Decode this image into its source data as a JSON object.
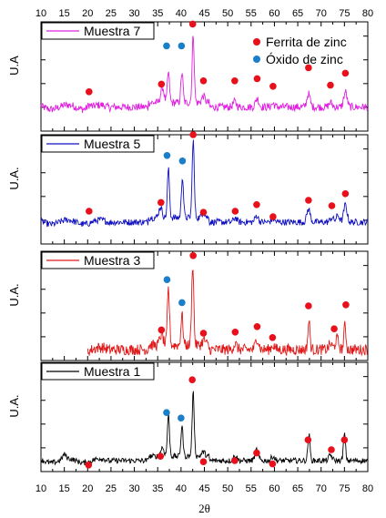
{
  "chart_data": {
    "type": "line",
    "xlabel": "2θ",
    "xlim": [
      10,
      80
    ],
    "x_ticks": [
      "10",
      "15",
      "20",
      "25",
      "30",
      "35",
      "40",
      "45",
      "50",
      "55",
      "60",
      "65",
      "70",
      "75",
      "80"
    ],
    "legend_markers": [
      {
        "label": "Ferrita de zinc",
        "color": "#e8101a"
      },
      {
        "label": "Óxido de zinc",
        "color": "#1a7ec8"
      }
    ],
    "panels": [
      {
        "series_name": "Muestra 7",
        "color": "#e020e0",
        "ylabel": "U.A",
        "x_start": 10,
        "baseline": 0.22,
        "noise": 0.035,
        "peaks": [
          {
            "x": 20.3,
            "h": 0.03
          },
          {
            "x": 36.0,
            "h": 0.14
          },
          {
            "x": 37.3,
            "h": 0.28
          },
          {
            "x": 40.2,
            "h": 0.28
          },
          {
            "x": 42.6,
            "h": 0.62
          },
          {
            "x": 44.8,
            "h": 0.06
          },
          {
            "x": 51.5,
            "h": 0.05
          },
          {
            "x": 56.3,
            "h": 0.08
          },
          {
            "x": 59.7,
            "h": 0.03
          },
          {
            "x": 67.3,
            "h": 0.12
          },
          {
            "x": 72.0,
            "h": 0.04
          },
          {
            "x": 75.2,
            "h": 0.14
          }
        ],
        "ferrita_x": [
          20.3,
          35.8,
          44.8,
          51.5,
          56.3,
          59.7,
          67.3,
          72.0,
          75.2
        ],
        "ferrita_y": [
          0.36,
          0.43,
          0.46,
          0.46,
          0.48,
          0.41,
          0.58,
          0.42,
          0.53
        ],
        "oxido_x": [
          36.9,
          40.1
        ],
        "oxido_y": [
          0.78,
          0.78
        ],
        "ferrita_top": {
          "x": 42.5,
          "y": 0.98
        }
      },
      {
        "series_name": "Muestra 5",
        "color": "#1010c0",
        "ylabel": "U.A.",
        "x_start": 10,
        "baseline": 0.2,
        "noise": 0.03,
        "peaks": [
          {
            "x": 35.6,
            "h": 0.1
          },
          {
            "x": 37.3,
            "h": 0.45
          },
          {
            "x": 40.3,
            "h": 0.38
          },
          {
            "x": 42.6,
            "h": 0.72
          },
          {
            "x": 44.8,
            "h": 0.05
          },
          {
            "x": 51.6,
            "h": 0.04
          },
          {
            "x": 56.2,
            "h": 0.06
          },
          {
            "x": 59.7,
            "h": 0.03
          },
          {
            "x": 67.3,
            "h": 0.12
          },
          {
            "x": 72.3,
            "h": 0.04
          },
          {
            "x": 73.6,
            "h": 0.06
          },
          {
            "x": 75.2,
            "h": 0.16
          }
        ],
        "ferrita_x": [
          20.3,
          35.7,
          44.8,
          51.6,
          56.2,
          59.7,
          67.3,
          72.3,
          75.2
        ],
        "ferrita_y": [
          0.3,
          0.38,
          0.29,
          0.3,
          0.36,
          0.25,
          0.4,
          0.35,
          0.46
        ],
        "oxido_x": [
          37.0,
          40.3
        ],
        "oxido_y": [
          0.81,
          0.76
        ],
        "ferrita_top": {
          "x": 42.6,
          "y": 1.0
        }
      },
      {
        "series_name": "Muestra 3",
        "color": "#e01818",
        "ylabel": "U.A.",
        "x_start": 20,
        "baseline": 0.1,
        "noise": 0.05,
        "peaks": [
          {
            "x": 35.8,
            "h": 0.1
          },
          {
            "x": 37.3,
            "h": 0.52
          },
          {
            "x": 40.2,
            "h": 0.28
          },
          {
            "x": 42.5,
            "h": 0.75
          },
          {
            "x": 44.9,
            "h": 0.05
          },
          {
            "x": 51.6,
            "h": 0.05
          },
          {
            "x": 56.3,
            "h": 0.1
          },
          {
            "x": 59.7,
            "h": 0.04
          },
          {
            "x": 67.4,
            "h": 0.26
          },
          {
            "x": 72.0,
            "h": 0.05
          },
          {
            "x": 73.4,
            "h": 0.1
          },
          {
            "x": 75.1,
            "h": 0.22
          }
        ],
        "ferrita_x": [
          35.8,
          44.8,
          51.6,
          56.3,
          59.6,
          67.3,
          72.8,
          75.3
        ],
        "ferrita_y": [
          0.28,
          0.25,
          0.26,
          0.31,
          0.21,
          0.5,
          0.29,
          0.51
        ],
        "oxido_x": [
          37.0,
          40.2
        ],
        "oxido_y": [
          0.74,
          0.53
        ],
        "ferrita_top": {
          "x": 42.6,
          "y": 0.96
        }
      },
      {
        "series_name": "Muestra 1",
        "color": "#000000",
        "ylabel": "U.A.",
        "x_start": 10,
        "baseline": 0.1,
        "noise": 0.025,
        "peaks": [
          {
            "x": 15.0,
            "h": 0.04
          },
          {
            "x": 36.0,
            "h": 0.08
          },
          {
            "x": 37.3,
            "h": 0.38
          },
          {
            "x": 40.2,
            "h": 0.28
          },
          {
            "x": 42.6,
            "h": 0.58
          },
          {
            "x": 44.8,
            "h": 0.04
          },
          {
            "x": 51.6,
            "h": 0.05
          },
          {
            "x": 56.2,
            "h": 0.1
          },
          {
            "x": 59.7,
            "h": 0.04
          },
          {
            "x": 67.4,
            "h": 0.24
          },
          {
            "x": 72.0,
            "h": 0.05
          },
          {
            "x": 75.0,
            "h": 0.24
          }
        ],
        "ferrita_x": [
          20.2,
          35.6,
          44.8,
          51.5,
          56.2,
          59.6,
          67.2,
          72.2,
          75.0
        ],
        "ferrita_y": [
          0.06,
          0.14,
          0.09,
          0.1,
          0.17,
          0.07,
          0.29,
          0.2,
          0.29
        ],
        "oxido_x": [
          36.9,
          40.0
        ],
        "oxido_y": [
          0.54,
          0.49
        ],
        "ferrita_top": {
          "x": 42.4,
          "y": 0.84
        }
      }
    ]
  }
}
